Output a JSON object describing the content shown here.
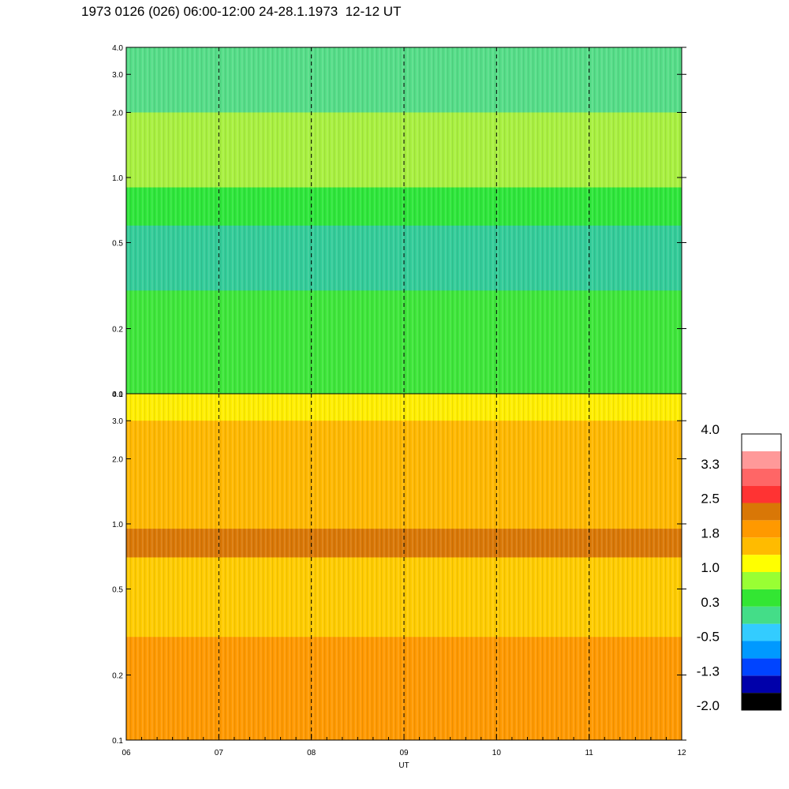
{
  "title": "1973 0126 (026) 06:00-12:00 24-28.1.1973  12-12 UT",
  "chart_data": {
    "type": "heatmap",
    "panels": [
      {
        "name": "",
        "y_ticks": [
          "0.1",
          "0.2",
          "0.5",
          "1.0",
          "2.0",
          "3.0",
          "4.0"
        ],
        "y_values": [
          0.1,
          0.2,
          0.5,
          1.0,
          2.0,
          3.0,
          4.0
        ],
        "ylim": [
          0.1,
          4.0
        ],
        "y_scale": "log",
        "background": "#2ee63a",
        "bands": [
          {
            "from": 0.1,
            "to": 0.3,
            "color": "#3ee63a"
          },
          {
            "from": 0.3,
            "to": 0.6,
            "color": "#33cc99"
          },
          {
            "from": 0.6,
            "to": 0.9,
            "color": "#2ee63a"
          },
          {
            "from": 0.9,
            "to": 2.0,
            "color": "#a8f040"
          },
          {
            "from": 2.0,
            "to": 4.0,
            "color": "#55dd88"
          }
        ]
      },
      {
        "name": "",
        "y_ticks": [
          "0.1",
          "0.2",
          "0.5",
          "1.0",
          "2.0",
          "3.0",
          "4.0"
        ],
        "y_values": [
          0.1,
          0.2,
          0.5,
          1.0,
          2.0,
          3.0,
          4.0
        ],
        "ylim": [
          0.1,
          4.0
        ],
        "y_scale": "log",
        "background": "#ff9900",
        "bands": [
          {
            "from": 0.1,
            "to": 0.3,
            "color": "#ff9900"
          },
          {
            "from": 0.3,
            "to": 0.7,
            "color": "#ffcc00"
          },
          {
            "from": 0.7,
            "to": 0.95,
            "color": "#d97706"
          },
          {
            "from": 0.95,
            "to": 3.0,
            "color": "#ffb800"
          },
          {
            "from": 3.0,
            "to": 4.0,
            "color": "#ffee00"
          }
        ]
      }
    ],
    "x_ticks": [
      "06",
      "07",
      "08",
      "09",
      "10",
      "11",
      "12"
    ],
    "x_values": [
      6,
      7,
      8,
      9,
      10,
      11,
      12
    ],
    "xlim": [
      6,
      12
    ],
    "xlabel": "UT",
    "dashed_lines_at": [
      7,
      8,
      9,
      10,
      11
    ],
    "colorbar": {
      "labels": [
        "4.0",
        "3.3",
        "2.5",
        "1.8",
        "1.0",
        "0.3",
        "-0.5",
        "-1.3",
        "-2.0"
      ],
      "colors": [
        "#000000",
        "#0000aa",
        "#0044ff",
        "#0099ff",
        "#33ccff",
        "#44dd88",
        "#33e633",
        "#99ff33",
        "#ffff00",
        "#ffbb00",
        "#ff9900",
        "#d97706",
        "#ff3333",
        "#ff6666",
        "#ff9999",
        "#ffffff"
      ]
    },
    "grid": false
  }
}
